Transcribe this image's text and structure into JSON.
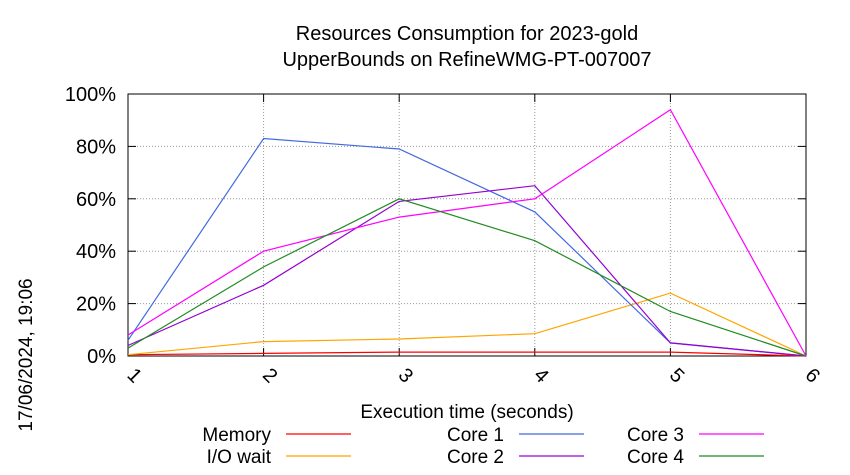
{
  "chart_data": {
    "type": "line",
    "title": "Resources Consumption for 2023-gold",
    "subtitle": "UpperBounds on RefineWMG-PT-007007",
    "xlabel": "Execution time (seconds)",
    "ylabel": "",
    "side_label": "17/06/2024, 19:06",
    "x": [
      1,
      2,
      3,
      4,
      5,
      6
    ],
    "x_ticks": [
      "1",
      "2",
      "3",
      "4",
      "5",
      "6"
    ],
    "y_ticks": [
      "0%",
      "20%",
      "40%",
      "60%",
      "80%",
      "100%"
    ],
    "xlim": [
      1,
      6
    ],
    "ylim": [
      0,
      100
    ],
    "grid": true,
    "legend_position": "bottom",
    "series": [
      {
        "name": "Memory",
        "color": "#ff0000",
        "values": [
          0.5,
          1,
          1.5,
          1.5,
          1.5,
          0
        ]
      },
      {
        "name": "I/O wait",
        "color": "#ffa500",
        "values": [
          0.5,
          5.5,
          6.5,
          8.5,
          24,
          0
        ]
      },
      {
        "name": "Core 1",
        "color": "#4169e1",
        "values": [
          6,
          83,
          79,
          55,
          5,
          0
        ]
      },
      {
        "name": "Core 2",
        "color": "#9400d3",
        "values": [
          4,
          27,
          59,
          65,
          5,
          0
        ]
      },
      {
        "name": "Core 3",
        "color": "#ff00ff",
        "values": [
          8,
          40,
          53,
          60,
          94,
          0
        ]
      },
      {
        "name": "Core 4",
        "color": "#228b22",
        "values": [
          3,
          34,
          60,
          44,
          17,
          0
        ]
      }
    ]
  }
}
